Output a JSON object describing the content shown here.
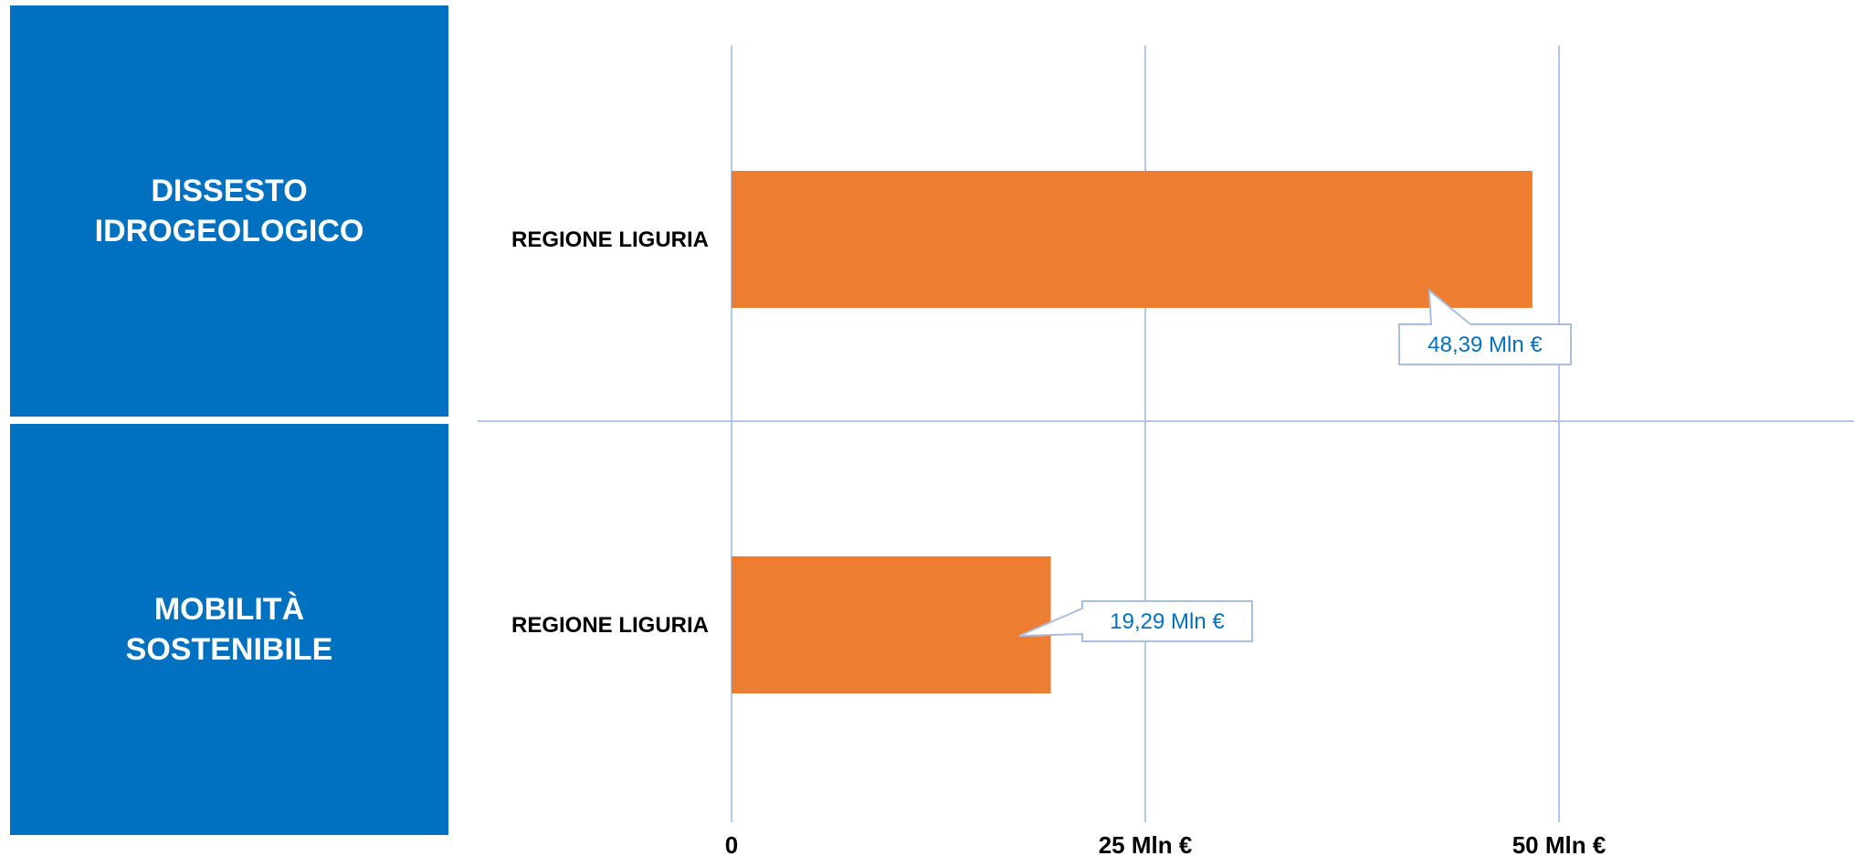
{
  "categories_boxes": [
    {
      "label": "DISSESTO\nIDROGEOLOGICO"
    },
    {
      "label": "MOBILITÀ\nSOSTENIBILE"
    }
  ],
  "chart_data": {
    "type": "bar",
    "orientation": "horizontal",
    "categories": [
      "REGIONE LIGURIA",
      "REGIONE LIGURIA"
    ],
    "groups": [
      "DISSESTO IDROGEOLOGICO",
      "MOBILITÀ SOSTENIBILE"
    ],
    "values": [
      48.39,
      19.29
    ],
    "value_labels": [
      "48,39 Mln €",
      "19,29 Mln €"
    ],
    "x_ticks": [
      {
        "value": 0,
        "label": "0"
      },
      {
        "value": 25,
        "label": "25 Mln €"
      },
      {
        "value": 50,
        "label": "50 Mln €"
      }
    ],
    "xlim": [
      0,
      67
    ],
    "grid": true,
    "colors": {
      "bar": "#ed7d31",
      "grid": "#b4c7e7",
      "label": "#0070c0",
      "category_box": "#0070c0"
    }
  }
}
